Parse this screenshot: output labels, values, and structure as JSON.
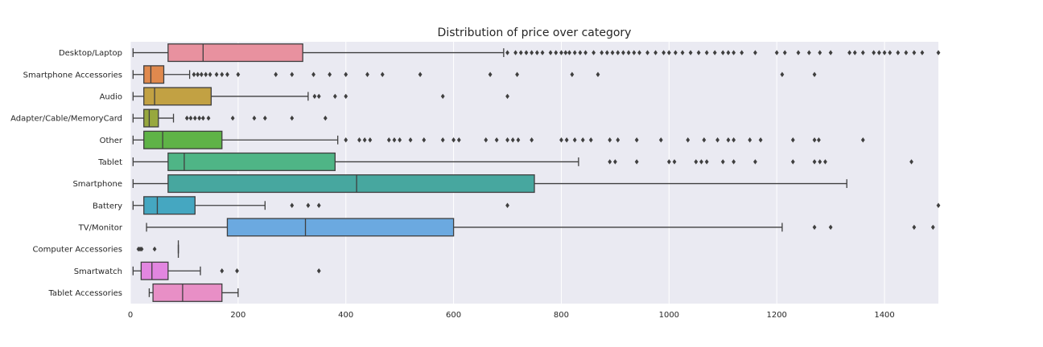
{
  "chart_data": {
    "type": "boxplot",
    "orientation": "horizontal",
    "title": "Distribution of price over category",
    "xlabel": "",
    "ylabel": "",
    "xlim": [
      0,
      1500
    ],
    "xticks": [
      0,
      200,
      400,
      600,
      800,
      1000,
      1200,
      1400
    ],
    "grid": "vertical",
    "categories": [
      {
        "name": "Desktop/Laptop",
        "color": "#e8919f",
        "whisker_low": 5,
        "q1": 70,
        "median": 135,
        "q3": 320,
        "whisker_high": 693,
        "outliers": [
          700,
          715,
          725,
          735,
          745,
          755,
          765,
          780,
          790,
          800,
          808,
          815,
          825,
          835,
          845,
          860,
          875,
          885,
          895,
          905,
          915,
          925,
          935,
          945,
          960,
          975,
          990,
          1000,
          1012,
          1025,
          1040,
          1055,
          1070,
          1085,
          1100,
          1110,
          1120,
          1135,
          1160,
          1200,
          1215,
          1240,
          1260,
          1280,
          1300,
          1335,
          1345,
          1360,
          1380,
          1390,
          1400,
          1410,
          1425,
          1440,
          1455,
          1470,
          1500
        ]
      },
      {
        "name": "Smartphone Accessories",
        "color": "#e0894e",
        "whisker_low": 5,
        "q1": 25,
        "median": 38,
        "q3": 62,
        "whisker_high": 110,
        "outliers": [
          118,
          125,
          132,
          140,
          148,
          160,
          170,
          180,
          200,
          270,
          300,
          340,
          370,
          400,
          440,
          468,
          538,
          668,
          718,
          820,
          868,
          1210,
          1270
        ]
      },
      {
        "name": "Audio",
        "color": "#c2a143",
        "whisker_low": 5,
        "q1": 25,
        "median": 45,
        "q3": 150,
        "whisker_high": 330,
        "outliers": [
          342,
          350,
          380,
          400,
          580,
          700
        ]
      },
      {
        "name": "Adapter/Cable/MemoryCard",
        "color": "#97a83e",
        "whisker_low": 5,
        "q1": 25,
        "median": 35,
        "q3": 52,
        "whisker_high": 80,
        "outliers": [
          105,
          112,
          120,
          128,
          135,
          145,
          190,
          230,
          250,
          300,
          362
        ]
      },
      {
        "name": "Other",
        "color": "#5fb347",
        "whisker_low": 5,
        "q1": 25,
        "median": 60,
        "q3": 170,
        "whisker_high": 385,
        "outliers": [
          400,
          425,
          435,
          445,
          480,
          490,
          500,
          520,
          545,
          580,
          600,
          610,
          660,
          680,
          700,
          710,
          720,
          745,
          800,
          810,
          825,
          840,
          855,
          890,
          905,
          940,
          985,
          1035,
          1065,
          1090,
          1110,
          1120,
          1150,
          1170,
          1230,
          1270,
          1278,
          1360
        ]
      },
      {
        "name": "Tablet",
        "color": "#4fb586",
        "whisker_low": 5,
        "q1": 70,
        "median": 100,
        "q3": 380,
        "whisker_high": 832,
        "outliers": [
          890,
          900,
          940,
          1000,
          1010,
          1050,
          1060,
          1070,
          1100,
          1120,
          1160,
          1230,
          1270,
          1280,
          1290,
          1450
        ]
      },
      {
        "name": "Smartphone",
        "color": "#47a79f",
        "whisker_low": 5,
        "q1": 70,
        "median": 420,
        "q3": 750,
        "whisker_high": 1330,
        "outliers": []
      },
      {
        "name": "Battery",
        "color": "#45a7c1",
        "whisker_low": 5,
        "q1": 25,
        "median": 50,
        "q3": 120,
        "whisker_high": 250,
        "outliers": [
          300,
          330,
          350,
          700,
          1500
        ]
      },
      {
        "name": "TV/Monitor",
        "color": "#6ba9e0",
        "whisker_low": 30,
        "q1": 180,
        "median": 325,
        "q3": 600,
        "whisker_high": 1210,
        "outliers": [
          1270,
          1300,
          1455,
          1490
        ]
      },
      {
        "name": "Computer Accessories",
        "color": "#a9a3e6",
        "whisker_low": 89,
        "q1": 89,
        "median": 89,
        "q3": 89,
        "whisker_high": 89,
        "outliers": [
          15,
          18,
          21,
          45
        ]
      },
      {
        "name": "Smartwatch",
        "color": "#e286e0",
        "whisker_low": 5,
        "q1": 20,
        "median": 40,
        "q3": 70,
        "whisker_high": 130,
        "outliers": [
          170,
          198,
          350
        ]
      },
      {
        "name": "Tablet Accessories",
        "color": "#e88fc6",
        "whisker_low": 35,
        "q1": 42,
        "median": 97,
        "q3": 170,
        "whisker_high": 200,
        "outliers": []
      }
    ]
  }
}
